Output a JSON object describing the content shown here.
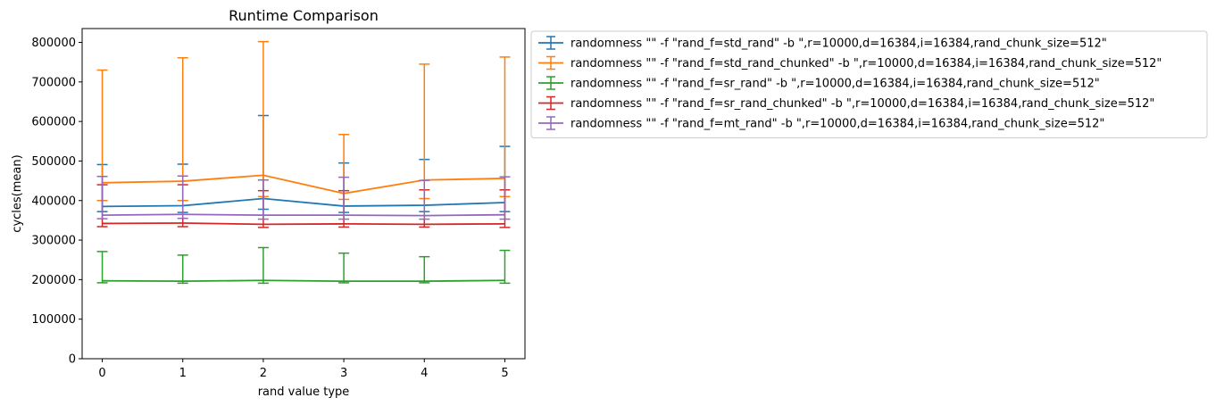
{
  "chart_data": {
    "type": "line",
    "title": "Runtime Comparison",
    "xlabel": "rand value type",
    "ylabel": "cycles(mean)",
    "x": [
      0,
      1,
      2,
      3,
      4,
      5
    ],
    "xticks": [
      "0",
      "1",
      "2",
      "3",
      "4",
      "5"
    ],
    "xlim": [
      -0.25,
      5.25
    ],
    "ylim": [
      0,
      835000
    ],
    "yticks": [
      "0",
      "100000",
      "200000",
      "300000",
      "400000",
      "500000",
      "600000",
      "700000",
      "800000"
    ],
    "yticks_values": [
      0,
      100000,
      200000,
      300000,
      400000,
      500000,
      600000,
      700000,
      800000
    ],
    "grid": false,
    "legend_position": "outside-right-top",
    "series": [
      {
        "name": "randomness \"\" -f \"rand_f=std_rand\" -b \",r=10000,d=16384,i=16384,rand_chunk_size=512\"",
        "color": "#1f77b4",
        "values": [
          385000,
          387000,
          405000,
          386000,
          388000,
          395000
        ],
        "err_low": [
          372000,
          370000,
          378000,
          370000,
          372000,
          372000
        ],
        "err_high": [
          491000,
          492000,
          615000,
          495000,
          504000,
          537000
        ]
      },
      {
        "name": "randomness \"\" -f \"rand_f=std_rand_chunked\" -b \",r=10000,d=16384,i=16384,rand_chunk_size=512\"",
        "color": "#ff7f0e",
        "values": [
          445000,
          449000,
          464000,
          418000,
          452000,
          456000
        ],
        "err_low": [
          400000,
          400000,
          410000,
          403000,
          405000,
          410000
        ],
        "err_high": [
          730000,
          761000,
          802000,
          567000,
          745000,
          763000
        ]
      },
      {
        "name": "randomness \"\" -f \"rand_f=sr_rand\" -b \",r=10000,d=16384,i=16384,rand_chunk_size=512\"",
        "color": "#2ca02c",
        "values": [
          197000,
          196000,
          198000,
          196000,
          196000,
          198000
        ],
        "err_low": [
          192000,
          191000,
          191000,
          192000,
          192000,
          191000
        ],
        "err_high": [
          271000,
          262000,
          281000,
          267000,
          258000,
          274000
        ]
      },
      {
        "name": "randomness \"\" -f \"rand_f=sr_rand_chunked\" -b \",r=10000,d=16384,i=16384,rand_chunk_size=512\"",
        "color": "#d62728",
        "values": [
          342000,
          343000,
          340000,
          341000,
          340000,
          341000
        ],
        "err_low": [
          334000,
          334000,
          332000,
          333000,
          333000,
          332000
        ],
        "err_high": [
          440000,
          440000,
          425000,
          425000,
          427000,
          427000
        ]
      },
      {
        "name": "randomness \"\" -f \"rand_f=mt_rand\" -b \",r=10000,d=16384,i=16384,rand_chunk_size=512\"",
        "color": "#9467bd",
        "values": [
          363000,
          365000,
          363000,
          363000,
          362000,
          364000
        ],
        "err_low": [
          354000,
          355000,
          353000,
          353000,
          353000,
          353000
        ],
        "err_high": [
          461000,
          462000,
          452000,
          459000,
          451000,
          460000
        ]
      }
    ]
  }
}
